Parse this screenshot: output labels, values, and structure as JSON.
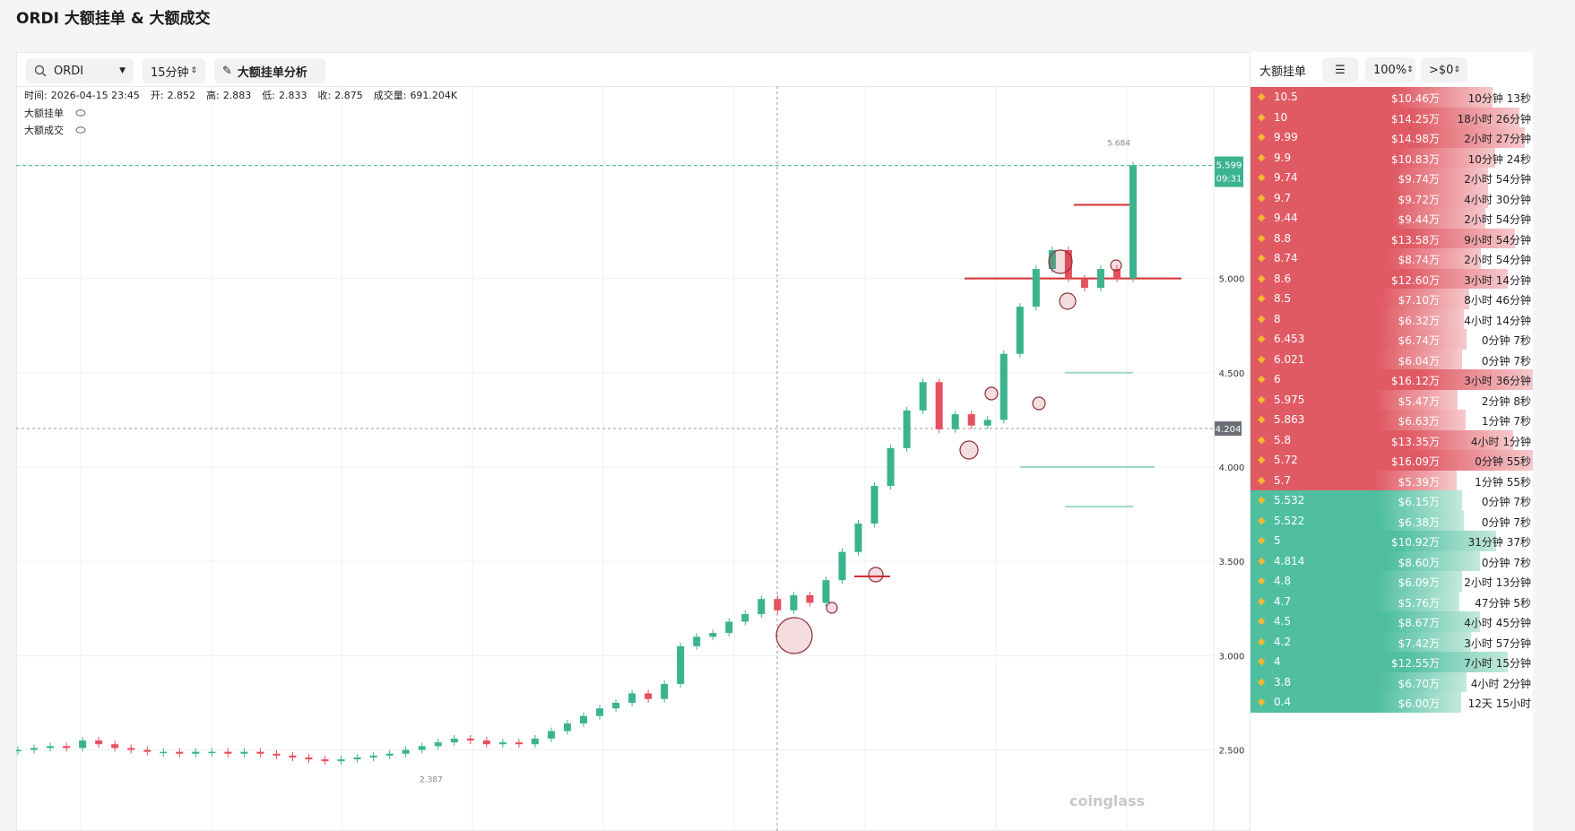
{
  "title": "ORDI 大额挂单 & 大额成交",
  "toolbar": {
    "symbol": "ORDI",
    "interval": "15分钟",
    "analysis_button": "大额挂单分析"
  },
  "info": [
    {
      "label": "时间:",
      "value": "2026-04-15 23:45"
    },
    {
      "label": "开:",
      "value": "2.852"
    },
    {
      "label": "高:",
      "value": "2.883"
    },
    {
      "label": "低:",
      "value": "2.833"
    },
    {
      "label": "收:",
      "value": "2.875"
    },
    {
      "label": "成交量:",
      "value": "691.204K"
    }
  ],
  "layers": [
    "大额挂单",
    "大额成交"
  ],
  "chart_data": {
    "type": "candlestick",
    "close": [
      2.5,
      2.51,
      2.52,
      2.51,
      2.55,
      2.53,
      2.51,
      2.5,
      2.49,
      2.49,
      2.48,
      2.49,
      2.49,
      2.48,
      2.49,
      2.48,
      2.47,
      2.46,
      2.45,
      2.44,
      2.45,
      2.46,
      2.47,
      2.48,
      2.5,
      2.52,
      2.54,
      2.56,
      2.55,
      2.53,
      2.54,
      2.53,
      2.56,
      2.6,
      2.64,
      2.68,
      2.72,
      2.75,
      2.8,
      2.77,
      2.85,
      3.05,
      3.1,
      3.12,
      3.18,
      3.22,
      3.3,
      3.24,
      3.32,
      3.28,
      3.4,
      3.55,
      3.7,
      3.9,
      4.1,
      4.3,
      4.45,
      4.2,
      4.28,
      4.22,
      4.25,
      4.6,
      4.85,
      5.05,
      5.15,
      5.0,
      4.95,
      5.05,
      5.0,
      5.6
    ],
    "up_color": "#3bb38e",
    "down_color": "#e5505f",
    "ylim": [
      2.07,
      6.02
    ],
    "yticks": [
      {
        "value": 2.5,
        "label": "2.500"
      },
      {
        "value": 3,
        "label": "3.000"
      },
      {
        "value": 3.5,
        "label": "3.500"
      },
      {
        "value": 4,
        "label": "4.000"
      },
      {
        "value": 4.5,
        "label": "4.500"
      },
      {
        "value": 5,
        "label": "5.000"
      }
    ],
    "last_price": {
      "value": 5.599,
      "label": "5.599"
    },
    "countdown": "09:31",
    "crosshair_price": {
      "value": 4.204,
      "label": "4.204"
    },
    "high_annotation": {
      "value": 5.684,
      "label": "5.684"
    },
    "low_annotation": {
      "value": 2.387,
      "label": "2.387"
    }
  },
  "order_book": {
    "title": "大额挂单",
    "depth": "100%",
    "min_size": ">$0",
    "asks": [
      {
        "price": "10.5",
        "amount": 10.46,
        "amount_label": "$10.46万",
        "time": "10分钟 13秒"
      },
      {
        "price": "10",
        "amount": 14.25,
        "amount_label": "$14.25万",
        "time": "18小时 26分钟"
      },
      {
        "price": "9.99",
        "amount": 14.98,
        "amount_label": "$14.98万",
        "time": "2小时 27分钟"
      },
      {
        "price": "9.9",
        "amount": 10.83,
        "amount_label": "$10.83万",
        "time": "10分钟 24秒"
      },
      {
        "price": "9.74",
        "amount": 9.74,
        "amount_label": "$9.74万",
        "time": "2小时 54分钟"
      },
      {
        "price": "9.7",
        "amount": 9.72,
        "amount_label": "$9.72万",
        "time": "4小时 30分钟"
      },
      {
        "price": "9.44",
        "amount": 9.44,
        "amount_label": "$9.44万",
        "time": "2小时 54分钟"
      },
      {
        "price": "8.8",
        "amount": 13.58,
        "amount_label": "$13.58万",
        "time": "9小时 54分钟"
      },
      {
        "price": "8.74",
        "amount": 8.74,
        "amount_label": "$8.74万",
        "time": "2小时 54分钟"
      },
      {
        "price": "8.6",
        "amount": 12.6,
        "amount_label": "$12.60万",
        "time": "3小时 14分钟"
      },
      {
        "price": "8.5",
        "amount": 7.1,
        "amount_label": "$7.10万",
        "time": "8小时 46分钟"
      },
      {
        "price": "8",
        "amount": 6.32,
        "amount_label": "$6.32万",
        "time": "4小时 14分钟"
      },
      {
        "price": "6.453",
        "amount": 6.74,
        "amount_label": "$6.74万",
        "time": "0分钟 7秒"
      },
      {
        "price": "6.021",
        "amount": 6.04,
        "amount_label": "$6.04万",
        "time": "0分钟 7秒"
      },
      {
        "price": "6",
        "amount": 16.12,
        "amount_label": "$16.12万",
        "time": "3小时 36分钟"
      },
      {
        "price": "5.975",
        "amount": 5.47,
        "amount_label": "$5.47万",
        "time": "2分钟 8秒"
      },
      {
        "price": "5.863",
        "amount": 6.63,
        "amount_label": "$6.63万",
        "time": "1分钟 7秒"
      },
      {
        "price": "5.8",
        "amount": 13.35,
        "amount_label": "$13.35万",
        "time": "4小时 1分钟"
      },
      {
        "price": "5.72",
        "amount": 16.09,
        "amount_label": "$16.09万",
        "time": "0分钟 55秒"
      },
      {
        "price": "5.7",
        "amount": 5.39,
        "amount_label": "$5.39万",
        "time": "1分钟 55秒"
      }
    ],
    "bids": [
      {
        "price": "5.532",
        "amount": 6.15,
        "amount_label": "$6.15万",
        "time": "0分钟 7秒"
      },
      {
        "price": "5.522",
        "amount": 6.38,
        "amount_label": "$6.38万",
        "time": "0分钟 7秒"
      },
      {
        "price": "5",
        "amount": 10.92,
        "amount_label": "$10.92万",
        "time": "31分钟 37秒"
      },
      {
        "price": "4.814",
        "amount": 8.6,
        "amount_label": "$8.60万",
        "time": "0分钟 7秒"
      },
      {
        "price": "4.8",
        "amount": 6.09,
        "amount_label": "$6.09万",
        "time": "2小时 13分钟"
      },
      {
        "price": "4.7",
        "amount": 5.76,
        "amount_label": "$5.76万",
        "time": "47分钟 5秒"
      },
      {
        "price": "4.5",
        "amount": 8.67,
        "amount_label": "$8.67万",
        "time": "4小时 45分钟"
      },
      {
        "price": "4.2",
        "amount": 7.42,
        "amount_label": "$7.42万",
        "time": "3小时 57分钟"
      },
      {
        "price": "4",
        "amount": 12.55,
        "amount_label": "$12.55万",
        "time": "7小时 15分钟"
      },
      {
        "price": "3.8",
        "amount": 6.7,
        "amount_label": "$6.70万",
        "time": "4小时 2分钟"
      },
      {
        "price": "0.4",
        "amount": 6.0,
        "amount_label": "$6.00万",
        "time": "12天 15小时"
      }
    ]
  },
  "watermark": "coinglass"
}
